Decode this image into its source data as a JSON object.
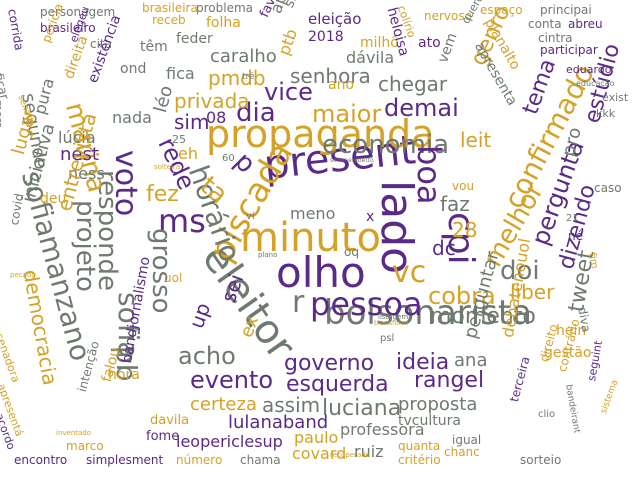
{
  "cloud": {
    "words": [
      {
        "text": "present",
        "color": "purple"
      },
      {
        "text": "propaganda",
        "color": "gold"
      },
      {
        "text": "minuto",
        "color": "gold"
      },
      {
        "text": "olho",
        "color": "purple"
      },
      {
        "text": "bolsonarista",
        "color": "gray"
      },
      {
        "text": "eleitor",
        "color": "gray"
      },
      {
        "text": "pessoa",
        "color": "purple"
      },
      {
        "text": "economia",
        "color": "gray"
      },
      {
        "text": "ms",
        "color": "purple"
      },
      {
        "text": "lado",
        "color": "purple"
      },
      {
        "text": "cpi",
        "color": "purple"
      },
      {
        "text": "vc",
        "color": "gold"
      },
      {
        "text": "boa",
        "color": "purple"
      },
      {
        "text": "piscada",
        "color": "gold"
      },
      {
        "text": "horário",
        "color": "gray"
      },
      {
        "text": "grosso",
        "color": "gray"
      },
      {
        "text": "voto",
        "color": "purple"
      },
      {
        "text": "responde",
        "color": "gray"
      },
      {
        "text": "projeto",
        "color": "gray"
      },
      {
        "text": "sofia",
        "color": "gray"
      },
      {
        "text": "sofiamanzano",
        "color": "gray"
      },
      {
        "text": "pb",
        "color": "gray"
      },
      {
        "text": "governo",
        "color": "purple"
      },
      {
        "text": "esquerda",
        "color": "purple"
      },
      {
        "text": "evento",
        "color": "purple"
      },
      {
        "text": "acho",
        "color": "gray"
      },
      {
        "text": "maior",
        "color": "gold"
      },
      {
        "text": "dia",
        "color": "purple"
      },
      {
        "text": "vice",
        "color": "purple"
      },
      {
        "text": "demai",
        "color": "purple"
      },
      {
        "text": "tema",
        "color": "purple"
      },
      {
        "text": "confirmado",
        "color": "gold"
      },
      {
        "text": "estúdio",
        "color": "purple"
      },
      {
        "text": "pergunta",
        "color": "purple"
      },
      {
        "text": "dizendo",
        "color": "purple"
      },
      {
        "text": "tweet",
        "color": "gray"
      },
      {
        "text": "melhor",
        "color": "gold"
      },
      {
        "text": "doi",
        "color": "gray"
      },
      {
        "text": "cobra",
        "color": "gold"
      },
      {
        "text": "liber",
        "color": "gold"
      },
      {
        "text": "momento",
        "color": "gray"
      },
      {
        "text": "ideia",
        "color": "purple"
      },
      {
        "text": "rangel",
        "color": "purple"
      },
      {
        "text": "ana",
        "color": "gray"
      },
      {
        "text": "luciana",
        "color": "gray"
      },
      {
        "text": "proposta",
        "color": "gray"
      },
      {
        "text": "assim",
        "color": "gray"
      },
      {
        "text": "certeza",
        "color": "gold"
      },
      {
        "text": "lulanaband",
        "color": "purple"
      },
      {
        "text": "leopericlesup",
        "color": "purple"
      },
      {
        "text": "professora",
        "color": "gray"
      },
      {
        "text": "paulo",
        "color": "gold"
      },
      {
        "text": "covard",
        "color": "gold"
      },
      {
        "text": "ruiz",
        "color": "gray"
      },
      {
        "text": "tvcultura",
        "color": "gray"
      },
      {
        "text": "marina",
        "color": "gold"
      },
      {
        "text": "rede",
        "color": "purple"
      },
      {
        "text": "fez",
        "color": "gold"
      },
      {
        "text": "sim",
        "color": "purple"
      },
      {
        "text": "privada",
        "color": "gold"
      },
      {
        "text": "pmdb",
        "color": "gold"
      },
      {
        "text": "senhora",
        "color": "gray"
      },
      {
        "text": "chegar",
        "color": "gray"
      },
      {
        "text": "genro",
        "color": "gold"
      },
      {
        "text": "leit",
        "color": "gold"
      },
      {
        "text": "faz",
        "color": "gray"
      },
      {
        "text": "dc",
        "color": "purple"
      },
      {
        "text": "28",
        "color": "gold"
      },
      {
        "text": "sei",
        "color": "purple"
      },
      {
        "text": "ex",
        "color": "gold"
      },
      {
        "text": "up",
        "color": "purple"
      },
      {
        "text": "r",
        "color": "gray"
      },
      {
        "text": "p",
        "color": "purple"
      },
      {
        "text": "ta",
        "color": "gold"
      },
      {
        "text": "léo",
        "color": "gray"
      },
      {
        "text": "nada",
        "color": "gray"
      },
      {
        "text": "fica",
        "color": "gray"
      },
      {
        "text": "caralho",
        "color": "gray"
      },
      {
        "text": "ptb",
        "color": "gold"
      },
      {
        "text": "apena",
        "color": "gray"
      },
      {
        "text": "siga",
        "color": "gray"
      },
      {
        "text": "eleição",
        "color": "purple"
      },
      {
        "text": "2018",
        "color": "purple"
      },
      {
        "text": "dávila",
        "color": "gray"
      },
      {
        "text": "milhô",
        "color": "gold"
      },
      {
        "text": "ato",
        "color": "purple"
      },
      {
        "text": "ano",
        "color": "gold"
      },
      {
        "text": "vem",
        "color": "gray"
      },
      {
        "text": "heloisa",
        "color": "purple"
      },
      {
        "text": "nervoso",
        "color": "gold"
      },
      {
        "text": "espaço",
        "color": "gold"
      },
      {
        "text": "principai",
        "color": "gray"
      },
      {
        "text": "conta",
        "color": "gray"
      },
      {
        "text": "abreu",
        "color": "purple"
      },
      {
        "text": "cintra",
        "color": "gray"
      },
      {
        "text": "participar",
        "color": "purple"
      },
      {
        "text": "eduardo",
        "color": "purple"
      },
      {
        "text": "planalto",
        "color": "gold"
      },
      {
        "text": "apresenta",
        "color": "gray"
      },
      {
        "text": "colírio",
        "color": "gold"
      },
      {
        "text": "quero",
        "color": "gray"
      },
      {
        "text": "favor",
        "color": "purple"
      },
      {
        "text": "folha",
        "color": "gold"
      },
      {
        "text": "feder",
        "color": "gray"
      },
      {
        "text": "têm",
        "color": "gray"
      },
      {
        "text": "ond",
        "color": "gray"
      },
      {
        "text": "receb",
        "color": "gold"
      },
      {
        "text": "problema",
        "color": "gray"
      },
      {
        "text": "brasileira",
        "color": "gold"
      },
      {
        "text": "personagem",
        "color": "gray"
      },
      {
        "text": "brasileiro",
        "color": "purple"
      },
      {
        "text": "cita",
        "color": "gray"
      },
      {
        "text": "corrida",
        "color": "purple"
      },
      {
        "text": "perícia",
        "color": "gold"
      },
      {
        "text": "elegeu",
        "color": "purple"
      },
      {
        "text": "existência",
        "color": "purple"
      },
      {
        "text": "direita",
        "color": "gold"
      },
      {
        "text": "segundo",
        "color": "gray"
      },
      {
        "text": "lúcia",
        "color": "gray"
      },
      {
        "text": "lugar",
        "color": "gold"
      },
      {
        "text": "pura",
        "color": "gray"
      },
      {
        "text": "nest",
        "color": "purple"
      },
      {
        "text": "ness",
        "color": "gray"
      },
      {
        "text": "deu",
        "color": "gold"
      },
      {
        "text": "entrevista",
        "color": "gold"
      },
      {
        "text": "iniciativa",
        "color": "gray"
      },
      {
        "text": "democracia",
        "color": "gold"
      },
      {
        "text": "hora",
        "color": "gold"
      },
      {
        "text": "falou",
        "color": "gold"
      },
      {
        "text": "intenção",
        "color": "gray"
      },
      {
        "text": "bandjornalismo",
        "color": "purple"
      },
      {
        "text": "fome",
        "color": "purple"
      },
      {
        "text": "davila",
        "color": "gold"
      },
      {
        "text": "encontro",
        "color": "purple"
      },
      {
        "text": "simplesment",
        "color": "purple"
      },
      {
        "text": "número",
        "color": "gold"
      },
      {
        "text": "chama",
        "color": "gray"
      },
      {
        "text": "marco",
        "color": "gold"
      },
      {
        "text": "senadora",
        "color": "gold"
      },
      {
        "text": "apresentá",
        "color": "gold"
      },
      {
        "text": "acordo",
        "color": "purple"
      },
      {
        "text": "covid",
        "color": "gray"
      },
      {
        "text": "ficar",
        "color": "gray"
      },
      {
        "text": "mors",
        "color": "gray"
      },
      {
        "text": "senado",
        "color": "gold"
      },
      {
        "text": "quanta",
        "color": "gold"
      },
      {
        "text": "igual",
        "color": "gray"
      },
      {
        "text": "critério",
        "color": "gold"
      },
      {
        "text": "chanc",
        "color": "gold"
      },
      {
        "text": "sorteio",
        "color": "gray"
      },
      {
        "text": "terceira",
        "color": "purple"
      },
      {
        "text": "debatenouol",
        "color": "gold"
      },
      {
        "text": "perguntar",
        "color": "gray"
      },
      {
        "text": "hein",
        "color": "gold"
      },
      {
        "text": "gestão",
        "color": "gold"
      },
      {
        "text": "direito",
        "color": "gold"
      },
      {
        "text": "contrário",
        "color": "gold"
      },
      {
        "text": "seguint",
        "color": "purple"
      },
      {
        "text": "bandeirant",
        "color": "gray"
      },
      {
        "text": "clio",
        "color": "gray"
      },
      {
        "text": "sistema",
        "color": "gold"
      },
      {
        "text": "diva",
        "color": "gray"
      },
      {
        "text": "né",
        "color": "purple"
      },
      {
        "text": "caso",
        "color": "gray"
      },
      {
        "text": "pro",
        "color": "gray"
      },
      {
        "text": "vou",
        "color": "gold"
      },
      {
        "text": "kkk",
        "color": "gray"
      },
      {
        "text": "exist",
        "color": "gray"
      },
      {
        "text": "educação",
        "color": "gray"
      },
      {
        "text": "meno",
        "color": "gray"
      },
      {
        "text": "oq",
        "color": "gray"
      },
      {
        "text": "psl",
        "color": "gray"
      },
      {
        "text": "listagem",
        "color": "gray"
      },
      {
        "text": "transform",
        "color": "gold"
      },
      {
        "text": "recuperado",
        "color": "gold"
      },
      {
        "text": "inventado",
        "color": "gold"
      },
      {
        "text": "pecado",
        "color": "gold"
      },
      {
        "text": "uol",
        "color": "gold"
      },
      {
        "text": "vi",
        "color": "gray"
      },
      {
        "text": "25",
        "color": "gray"
      },
      {
        "text": "60",
        "color": "gray"
      },
      {
        "text": "eh",
        "color": "gold"
      },
      {
        "text": "08",
        "color": "purple"
      },
      {
        "text": "tré",
        "color": "gray"
      },
      {
        "text": "x",
        "color": "purple"
      },
      {
        "text": "solteira",
        "color": "gold"
      },
      {
        "text": "simonetebetto",
        "color": "gray"
      },
      {
        "text": "plano",
        "color": "gray"
      },
      {
        "text": "fim",
        "color": "gold"
      },
      {
        "text": "21",
        "color": "gray"
      }
    ]
  }
}
